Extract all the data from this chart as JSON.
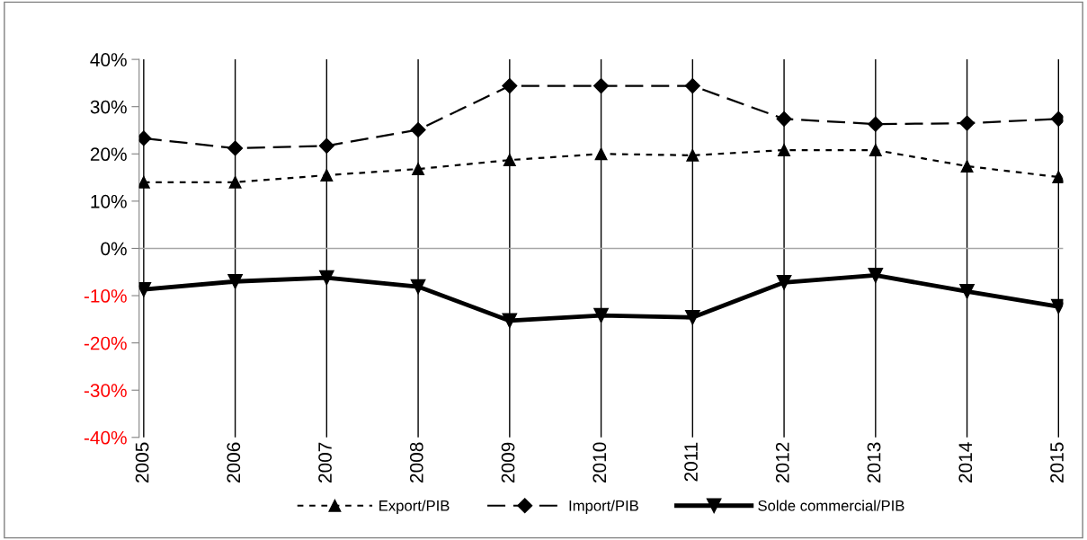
{
  "chart_data": {
    "type": "line",
    "categories": [
      "2005",
      "2006",
      "2007",
      "2008",
      "2009",
      "2010",
      "2011",
      "2012",
      "2013",
      "2014",
      "2015"
    ],
    "series": [
      {
        "name": "Export/PIB",
        "color": "#000000",
        "marker": "triangle",
        "line_style": "dotted",
        "values": [
          14.0,
          14.0,
          15.5,
          16.8,
          18.7,
          20.0,
          19.7,
          20.8,
          20.8,
          17.4,
          15.1
        ]
      },
      {
        "name": "Import/PIB",
        "color": "#000000",
        "marker": "diamond",
        "line_style": "dashed",
        "values": [
          23.3,
          21.2,
          21.7,
          25.1,
          34.4,
          34.4,
          34.4,
          27.4,
          26.3,
          26.5,
          27.4
        ]
      },
      {
        "name": "Solde commercial/PIB",
        "color": "#000000",
        "marker": "triangle_down",
        "line_style": "solid",
        "values": [
          -8.7,
          -7.0,
          -6.2,
          -8.1,
          -15.3,
          -14.2,
          -14.6,
          -7.2,
          -5.7,
          -9.1,
          -12.3
        ]
      }
    ],
    "ylim": [
      -40,
      40
    ],
    "yticks": [
      {
        "value": -40,
        "label": "-40%"
      },
      {
        "value": -30,
        "label": "-30%"
      },
      {
        "value": -20,
        "label": "-20%"
      },
      {
        "value": -10,
        "label": "-10%"
      },
      {
        "value": 0,
        "label": "0%"
      },
      {
        "value": 10,
        "label": "10%"
      },
      {
        "value": 20,
        "label": "20%"
      },
      {
        "value": 30,
        "label": "30%"
      },
      {
        "value": 40,
        "label": "40%"
      }
    ],
    "ref_lines": [
      {
        "axis": "y",
        "value": 0,
        "color": "#a6a6a6"
      }
    ],
    "grid": "x",
    "legend": "bottom"
  }
}
